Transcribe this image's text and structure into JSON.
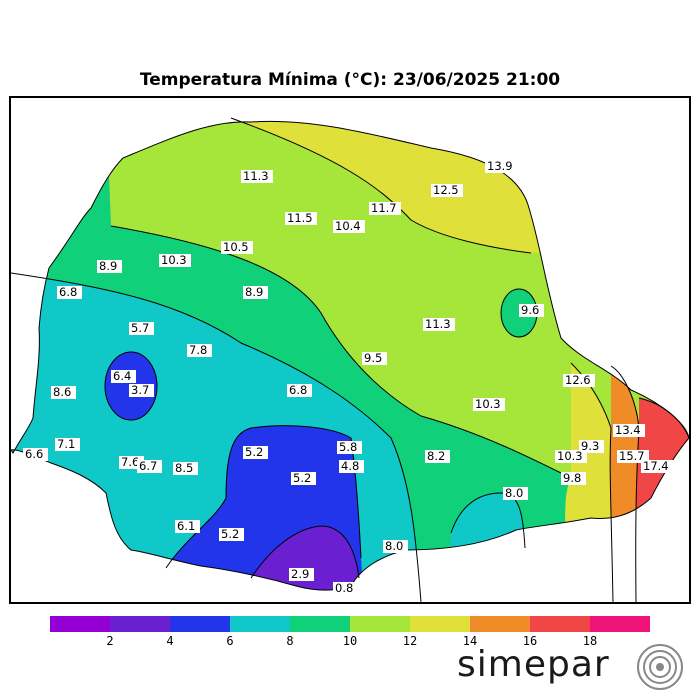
{
  "title": "Temperatura Mínima (°C): 23/06/2025 21:00",
  "logo_text": "simepar",
  "logo_icon": "concentric-waves-icon",
  "legend": {
    "colors": [
      "#9400d3",
      "#6a1fd0",
      "#2335ea",
      "#10c8c8",
      "#10d07a",
      "#a6e63a",
      "#e0e03a",
      "#f08c28",
      "#f04646",
      "#f0147a"
    ],
    "ticks": [
      "2",
      "4",
      "6",
      "8",
      "10",
      "12",
      "14",
      "16",
      "18"
    ]
  },
  "labels": [
    {
      "text": "11.3"
    },
    {
      "text": "12.5"
    },
    {
      "text": "13.9"
    },
    {
      "text": "11.5"
    },
    {
      "text": "11.7"
    },
    {
      "text": "10.4"
    },
    {
      "text": "10.5"
    },
    {
      "text": "10.3"
    },
    {
      "text": "8.9"
    },
    {
      "text": "6.8"
    },
    {
      "text": "8.9"
    },
    {
      "text": "9.6"
    },
    {
      "text": "5.7"
    },
    {
      "text": "7.8"
    },
    {
      "text": "11.3"
    },
    {
      "text": "9.5"
    },
    {
      "text": "6.4"
    },
    {
      "text": "3.7"
    },
    {
      "text": "8.6"
    },
    {
      "text": "6.8"
    },
    {
      "text": "12.6"
    },
    {
      "text": "10.3"
    },
    {
      "text": "13.4"
    },
    {
      "text": "7.1"
    },
    {
      "text": "6.6"
    },
    {
      "text": "5.8"
    },
    {
      "text": "5.2"
    },
    {
      "text": "4.8"
    },
    {
      "text": "8.2"
    },
    {
      "text": "9.3"
    },
    {
      "text": "10.3"
    },
    {
      "text": "15.7"
    },
    {
      "text": "17.4"
    },
    {
      "text": "7.6"
    },
    {
      "text": "6.7"
    },
    {
      "text": "8.5"
    },
    {
      "text": "5.2"
    },
    {
      "text": "8.0"
    },
    {
      "text": "9.8"
    },
    {
      "text": "6.1"
    },
    {
      "text": "5.2"
    },
    {
      "text": "8.0"
    },
    {
      "text": "2.9"
    },
    {
      "text": "0.8"
    }
  ]
}
